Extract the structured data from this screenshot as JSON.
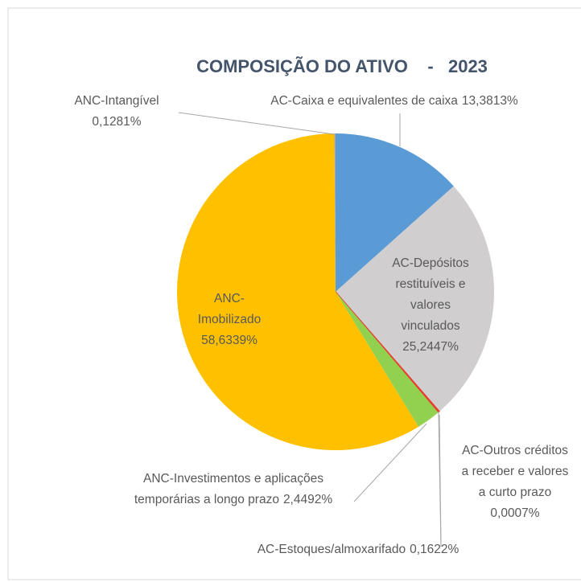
{
  "chart_data": {
    "type": "pie",
    "title": "COMPOSIÇÃO DO ATIVO    -   2023",
    "categories": [
      "AC-Caixa e equivalentes de caixa",
      "AC-Depósitos restituíveis e valores vinculados",
      "AC-Outros créditos a receber e valores a curto prazo",
      "AC-Estoques/almoxarifado",
      "ANC-Investimentos e aplicações temporárias a longo prazo",
      "ANC-Imobilizado",
      "ANC-Intangível"
    ],
    "values": [
      13.3813,
      25.2447,
      0.0007,
      0.1622,
      2.4492,
      58.6339,
      0.1281
    ],
    "value_labels": [
      "13,3813%",
      "25,2447%",
      "0,0007%",
      "0,1622%",
      "2,4492%",
      "58,6339%",
      "0,1281%"
    ],
    "colors": [
      "#5b9bd5",
      "#d0cece",
      "#c00000",
      "#ed3b2e",
      "#92d050",
      "#ffc000",
      "#a5a5a5"
    ]
  }
}
